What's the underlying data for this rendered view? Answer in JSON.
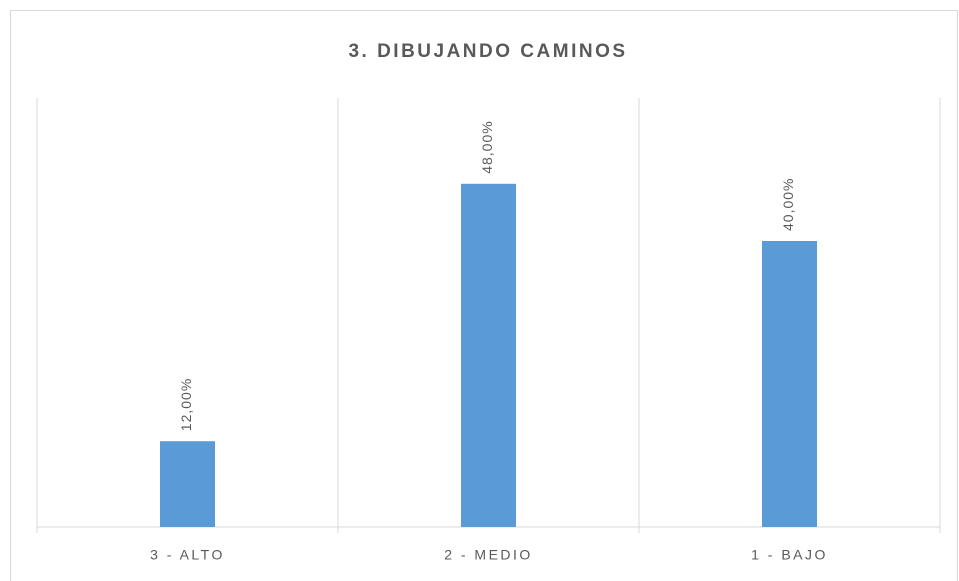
{
  "chart_data": {
    "type": "bar",
    "title": "3. DIBUJANDO CAMINOS",
    "categories": [
      "3 - ALTO",
      "2 - MEDIO",
      "1 - BAJO"
    ],
    "values": [
      12,
      48,
      40
    ],
    "value_labels": [
      "12,00%",
      "48,00%",
      "40,00%"
    ],
    "color": "#5b9bd5",
    "ylim": [
      0,
      60
    ]
  }
}
